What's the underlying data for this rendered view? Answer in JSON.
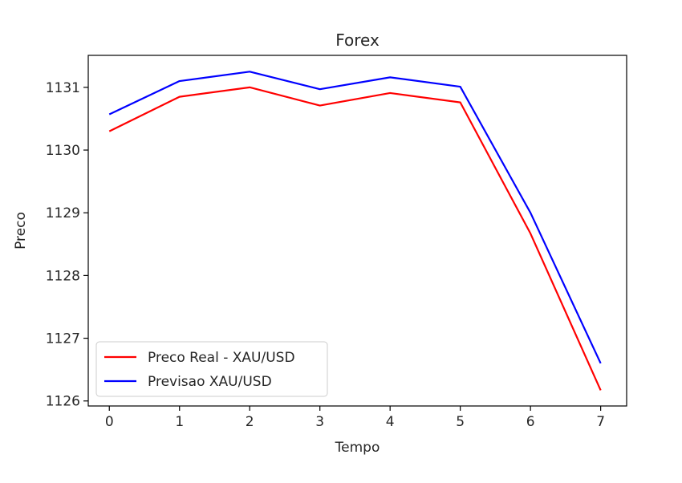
{
  "chart_data": {
    "type": "line",
    "title": "Forex",
    "xlabel": "Tempo",
    "ylabel": "Preco",
    "x": [
      0,
      1,
      2,
      3,
      4,
      5,
      6,
      7
    ],
    "xlim": [
      -0.3,
      7.37
    ],
    "ylim": [
      1125.92,
      1131.51
    ],
    "xticks": [
      "0",
      "1",
      "2",
      "3",
      "4",
      "5",
      "6",
      "7"
    ],
    "yticks": [
      "1126",
      "1127",
      "1128",
      "1129",
      "1130",
      "1131"
    ],
    "grid": false,
    "legend_position": "lower-left",
    "series": [
      {
        "name": "Preco Real - XAU/USD",
        "color": "#ff0000",
        "values": [
          1130.3,
          1130.85,
          1131.0,
          1130.71,
          1130.91,
          1130.76,
          1128.67,
          1126.17
        ]
      },
      {
        "name": "Previsao XAU/USD",
        "color": "#0000ff",
        "values": [
          1130.57,
          1131.1,
          1131.25,
          1130.97,
          1131.16,
          1131.01,
          1129.0,
          1126.6
        ]
      }
    ]
  }
}
